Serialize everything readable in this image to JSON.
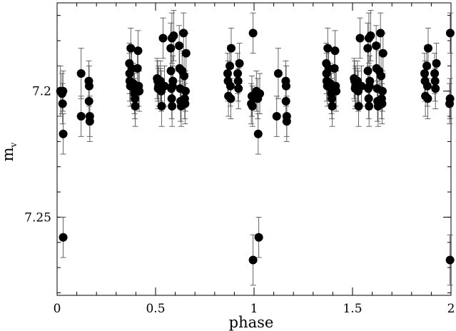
{
  "chart_data": {
    "type": "scatter",
    "xlabel": "phase",
    "ylabel": {
      "main": "m",
      "sub": "v"
    },
    "xlim": [
      0,
      2
    ],
    "ylim": [
      7.165,
      7.281
    ],
    "y_inverted": true,
    "grid": false,
    "xticks": [
      {
        "value": 0,
        "label": "0"
      },
      {
        "value": 0.5,
        "label": "0.5"
      },
      {
        "value": 1,
        "label": "1"
      },
      {
        "value": 1.5,
        "label": "1.5"
      },
      {
        "value": 2,
        "label": "2"
      }
    ],
    "yticks": [
      {
        "value": 7.2,
        "label": "7.2"
      },
      {
        "value": 7.25,
        "label": "7.25"
      }
    ],
    "x_minor_step": 0.1,
    "y_minor_step": 0.01,
    "marker_color": "#000000",
    "points": [
      {
        "x": 0.017,
        "y": 7.2,
        "err": 0.01
      },
      {
        "x": 0.025,
        "y": 7.201,
        "err": 0.008
      },
      {
        "x": 0.028,
        "y": 7.205,
        "err": 0.008
      },
      {
        "x": 0.03,
        "y": 7.2,
        "err": 0.008
      },
      {
        "x": 0.031,
        "y": 7.217,
        "err": 0.008
      },
      {
        "x": 0.031,
        "y": 7.258,
        "err": 0.008
      },
      {
        "x": 0.122,
        "y": 7.193,
        "err": 0.01
      },
      {
        "x": 0.122,
        "y": 7.21,
        "err": 0.008
      },
      {
        "x": 0.161,
        "y": 7.196,
        "err": 0.008
      },
      {
        "x": 0.163,
        "y": 7.198,
        "err": 0.008
      },
      {
        "x": 0.162,
        "y": 7.204,
        "err": 0.008
      },
      {
        "x": 0.166,
        "y": 7.21,
        "err": 0.008
      },
      {
        "x": 0.166,
        "y": 7.212,
        "err": 0.008
      },
      {
        "x": 0.367,
        "y": 7.189,
        "err": 0.008
      },
      {
        "x": 0.368,
        "y": 7.193,
        "err": 0.008
      },
      {
        "x": 0.369,
        "y": 7.196,
        "err": 0.008
      },
      {
        "x": 0.372,
        "y": 7.198,
        "err": 0.008
      },
      {
        "x": 0.374,
        "y": 7.183,
        "err": 0.008
      },
      {
        "x": 0.379,
        "y": 7.191,
        "err": 0.008
      },
      {
        "x": 0.387,
        "y": 7.197,
        "err": 0.008
      },
      {
        "x": 0.391,
        "y": 7.199,
        "err": 0.008
      },
      {
        "x": 0.393,
        "y": 7.201,
        "err": 0.008
      },
      {
        "x": 0.395,
        "y": 7.203,
        "err": 0.008
      },
      {
        "x": 0.397,
        "y": 7.206,
        "err": 0.008
      },
      {
        "x": 0.408,
        "y": 7.191,
        "err": 0.008
      },
      {
        "x": 0.411,
        "y": 7.184,
        "err": 0.008
      },
      {
        "x": 0.414,
        "y": 7.198,
        "err": 0.008
      },
      {
        "x": 0.417,
        "y": 7.2,
        "err": 0.008
      },
      {
        "x": 0.508,
        "y": 7.195,
        "err": 0.008
      },
      {
        "x": 0.511,
        "y": 7.196,
        "err": 0.008
      },
      {
        "x": 0.515,
        "y": 7.198,
        "err": 0.008
      },
      {
        "x": 0.513,
        "y": 7.199,
        "err": 0.008
      },
      {
        "x": 0.525,
        "y": 7.196,
        "err": 0.008
      },
      {
        "x": 0.527,
        "y": 7.199,
        "err": 0.008
      },
      {
        "x": 0.529,
        "y": 7.2,
        "err": 0.008
      },
      {
        "x": 0.531,
        "y": 7.206,
        "err": 0.008
      },
      {
        "x": 0.538,
        "y": 7.179,
        "err": 0.008
      },
      {
        "x": 0.545,
        "y": 7.198,
        "err": 0.008
      },
      {
        "x": 0.577,
        "y": 7.183,
        "err": 0.01
      },
      {
        "x": 0.578,
        "y": 7.192,
        "err": 0.008
      },
      {
        "x": 0.58,
        "y": 7.199,
        "err": 0.008
      },
      {
        "x": 0.582,
        "y": 7.203,
        "err": 0.008
      },
      {
        "x": 0.584,
        "y": 7.206,
        "err": 0.008
      },
      {
        "x": 0.586,
        "y": 7.198,
        "err": 0.008
      },
      {
        "x": 0.588,
        "y": 7.196,
        "err": 0.01
      },
      {
        "x": 0.583,
        "y": 7.179,
        "err": 0.01
      },
      {
        "x": 0.592,
        "y": 7.178,
        "err": 0.01
      },
      {
        "x": 0.62,
        "y": 7.182,
        "err": 0.008
      },
      {
        "x": 0.622,
        "y": 7.191,
        "err": 0.008
      },
      {
        "x": 0.625,
        "y": 7.199,
        "err": 0.008
      },
      {
        "x": 0.627,
        "y": 7.204,
        "err": 0.008
      },
      {
        "x": 0.63,
        "y": 7.206,
        "err": 0.008
      },
      {
        "x": 0.635,
        "y": 7.192,
        "err": 0.008
      },
      {
        "x": 0.642,
        "y": 7.177,
        "err": 0.008
      },
      {
        "x": 0.645,
        "y": 7.194,
        "err": 0.008
      },
      {
        "x": 0.648,
        "y": 7.203,
        "err": 0.008
      },
      {
        "x": 0.65,
        "y": 7.205,
        "err": 0.008
      },
      {
        "x": 0.652,
        "y": 7.2,
        "err": 0.008
      },
      {
        "x": 0.655,
        "y": 7.185,
        "err": 0.008
      },
      {
        "x": 0.866,
        "y": 7.193,
        "err": 0.008
      },
      {
        "x": 0.868,
        "y": 7.196,
        "err": 0.008
      },
      {
        "x": 0.87,
        "y": 7.202,
        "err": 0.008
      },
      {
        "x": 0.877,
        "y": 7.19,
        "err": 0.008
      },
      {
        "x": 0.88,
        "y": 7.198,
        "err": 0.008
      },
      {
        "x": 0.882,
        "y": 7.203,
        "err": 0.008
      },
      {
        "x": 0.884,
        "y": 7.183,
        "err": 0.008
      },
      {
        "x": 0.917,
        "y": 7.193,
        "err": 0.008
      },
      {
        "x": 0.919,
        "y": 7.196,
        "err": 0.008
      },
      {
        "x": 0.921,
        "y": 7.199,
        "err": 0.008
      },
      {
        "x": 0.926,
        "y": 7.189,
        "err": 0.008
      },
      {
        "x": 0.986,
        "y": 7.205,
        "err": 0.008
      },
      {
        "x": 0.989,
        "y": 7.202,
        "err": 0.008
      },
      {
        "x": 0.992,
        "y": 7.206,
        "err": 0.008
      },
      {
        "x": 0.995,
        "y": 7.267,
        "err": 0.01
      },
      {
        "x": 0.995,
        "y": 7.177,
        "err": 0.008
      },
      {
        "x": 1.012,
        "y": 7.2,
        "err": 0.008
      },
      {
        "x": 1.019,
        "y": 7.203,
        "err": 0.008
      },
      {
        "x": 1.021,
        "y": 7.217,
        "err": 0.008
      },
      {
        "x": 1.024,
        "y": 7.258,
        "err": 0.008
      },
      {
        "x": 1.029,
        "y": 7.201,
        "err": 0.008
      },
      {
        "x": 1.115,
        "y": 7.21,
        "err": 0.008
      },
      {
        "x": 1.123,
        "y": 7.193,
        "err": 0.01
      },
      {
        "x": 1.161,
        "y": 7.196,
        "err": 0.008
      },
      {
        "x": 1.163,
        "y": 7.198,
        "err": 0.008
      },
      {
        "x": 1.162,
        "y": 7.204,
        "err": 0.008
      },
      {
        "x": 1.166,
        "y": 7.21,
        "err": 0.008
      },
      {
        "x": 1.166,
        "y": 7.212,
        "err": 0.008
      },
      {
        "x": 1.367,
        "y": 7.189,
        "err": 0.008
      },
      {
        "x": 1.368,
        "y": 7.193,
        "err": 0.008
      },
      {
        "x": 1.369,
        "y": 7.196,
        "err": 0.008
      },
      {
        "x": 1.372,
        "y": 7.198,
        "err": 0.008
      },
      {
        "x": 1.374,
        "y": 7.183,
        "err": 0.008
      },
      {
        "x": 1.379,
        "y": 7.191,
        "err": 0.008
      },
      {
        "x": 1.387,
        "y": 7.197,
        "err": 0.008
      },
      {
        "x": 1.391,
        "y": 7.199,
        "err": 0.008
      },
      {
        "x": 1.393,
        "y": 7.201,
        "err": 0.008
      },
      {
        "x": 1.395,
        "y": 7.203,
        "err": 0.008
      },
      {
        "x": 1.397,
        "y": 7.206,
        "err": 0.008
      },
      {
        "x": 1.408,
        "y": 7.191,
        "err": 0.008
      },
      {
        "x": 1.411,
        "y": 7.184,
        "err": 0.008
      },
      {
        "x": 1.414,
        "y": 7.198,
        "err": 0.008
      },
      {
        "x": 1.417,
        "y": 7.2,
        "err": 0.008
      },
      {
        "x": 1.508,
        "y": 7.195,
        "err": 0.008
      },
      {
        "x": 1.511,
        "y": 7.196,
        "err": 0.008
      },
      {
        "x": 1.515,
        "y": 7.198,
        "err": 0.008
      },
      {
        "x": 1.513,
        "y": 7.199,
        "err": 0.008
      },
      {
        "x": 1.525,
        "y": 7.196,
        "err": 0.008
      },
      {
        "x": 1.527,
        "y": 7.199,
        "err": 0.008
      },
      {
        "x": 1.529,
        "y": 7.2,
        "err": 0.008
      },
      {
        "x": 1.531,
        "y": 7.206,
        "err": 0.008
      },
      {
        "x": 1.538,
        "y": 7.179,
        "err": 0.008
      },
      {
        "x": 1.545,
        "y": 7.198,
        "err": 0.008
      },
      {
        "x": 1.577,
        "y": 7.183,
        "err": 0.01
      },
      {
        "x": 1.578,
        "y": 7.192,
        "err": 0.008
      },
      {
        "x": 1.58,
        "y": 7.199,
        "err": 0.008
      },
      {
        "x": 1.582,
        "y": 7.203,
        "err": 0.008
      },
      {
        "x": 1.584,
        "y": 7.206,
        "err": 0.008
      },
      {
        "x": 1.586,
        "y": 7.198,
        "err": 0.008
      },
      {
        "x": 1.588,
        "y": 7.196,
        "err": 0.01
      },
      {
        "x": 1.583,
        "y": 7.179,
        "err": 0.01
      },
      {
        "x": 1.592,
        "y": 7.178,
        "err": 0.01
      },
      {
        "x": 1.62,
        "y": 7.182,
        "err": 0.008
      },
      {
        "x": 1.622,
        "y": 7.191,
        "err": 0.008
      },
      {
        "x": 1.625,
        "y": 7.199,
        "err": 0.008
      },
      {
        "x": 1.627,
        "y": 7.204,
        "err": 0.008
      },
      {
        "x": 1.63,
        "y": 7.206,
        "err": 0.008
      },
      {
        "x": 1.635,
        "y": 7.192,
        "err": 0.008
      },
      {
        "x": 1.642,
        "y": 7.177,
        "err": 0.008
      },
      {
        "x": 1.645,
        "y": 7.194,
        "err": 0.008
      },
      {
        "x": 1.648,
        "y": 7.203,
        "err": 0.008
      },
      {
        "x": 1.65,
        "y": 7.205,
        "err": 0.008
      },
      {
        "x": 1.652,
        "y": 7.2,
        "err": 0.008
      },
      {
        "x": 1.655,
        "y": 7.185,
        "err": 0.008
      },
      {
        "x": 1.866,
        "y": 7.193,
        "err": 0.008
      },
      {
        "x": 1.868,
        "y": 7.196,
        "err": 0.008
      },
      {
        "x": 1.87,
        "y": 7.202,
        "err": 0.008
      },
      {
        "x": 1.877,
        "y": 7.19,
        "err": 0.008
      },
      {
        "x": 1.88,
        "y": 7.198,
        "err": 0.008
      },
      {
        "x": 1.882,
        "y": 7.203,
        "err": 0.008
      },
      {
        "x": 1.884,
        "y": 7.183,
        "err": 0.008
      },
      {
        "x": 1.917,
        "y": 7.193,
        "err": 0.008
      },
      {
        "x": 1.919,
        "y": 7.196,
        "err": 0.008
      },
      {
        "x": 1.921,
        "y": 7.199,
        "err": 0.008
      },
      {
        "x": 1.926,
        "y": 7.189,
        "err": 0.008
      },
      {
        "x": 1.993,
        "y": 7.205,
        "err": 0.008
      },
      {
        "x": 1.995,
        "y": 7.203,
        "err": 0.008
      },
      {
        "x": 1.995,
        "y": 7.267,
        "err": 0.01
      },
      {
        "x": 1.996,
        "y": 7.177,
        "err": 0.008
      }
    ]
  }
}
